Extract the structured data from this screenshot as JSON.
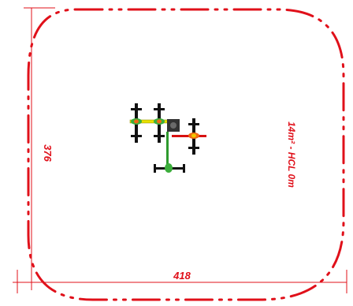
{
  "drawing": {
    "width_dimension": "418",
    "height_dimension": "376",
    "area_label": "14m² - HCL 0m"
  },
  "colors": {
    "safety_zone": "#e0101a",
    "dimension_line": "#e0101a",
    "frame": "#111111",
    "beam_yellow": "#e8e000",
    "beam_red": "#d81010",
    "beam_green": "#2e9a2e",
    "equipment_green": "#3cae3c",
    "equipment_orange": "#f06a14"
  },
  "icons": [
    "fitness-station-plan-icon"
  ]
}
